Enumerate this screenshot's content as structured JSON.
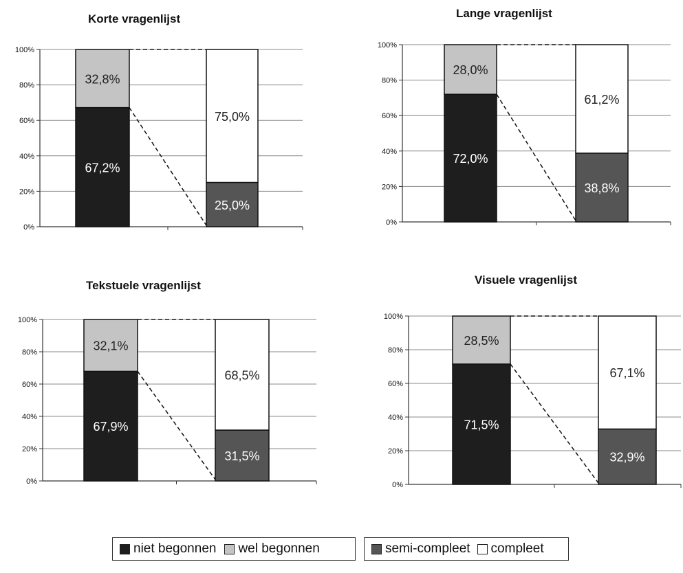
{
  "chart_data": [
    {
      "type": "bar",
      "stacked": true,
      "title": "Korte vragenlijst",
      "yticks": [
        "0%",
        "20%",
        "40%",
        "60%",
        "80%",
        "100%"
      ],
      "ylim": [
        0,
        100
      ],
      "grid": true,
      "bars": [
        {
          "segments": [
            {
              "series": "niet begonnen",
              "value": 67.2,
              "label": "67,2%"
            },
            {
              "series": "wel begonnen",
              "value": 32.8,
              "label": "32,8%"
            }
          ]
        },
        {
          "segments": [
            {
              "series": "semi-compleet",
              "value": 25.0,
              "label": "25,0%"
            },
            {
              "series": "compleet",
              "value": 75.0,
              "label": "75,0%"
            }
          ]
        }
      ]
    },
    {
      "type": "bar",
      "stacked": true,
      "title": "Lange vragenlijst",
      "yticks": [
        "0%",
        "20%",
        "40%",
        "60%",
        "80%",
        "100%"
      ],
      "ylim": [
        0,
        100
      ],
      "grid": true,
      "bars": [
        {
          "segments": [
            {
              "series": "niet begonnen",
              "value": 72.0,
              "label": "72,0%"
            },
            {
              "series": "wel begonnen",
              "value": 28.0,
              "label": "28,0%"
            }
          ]
        },
        {
          "segments": [
            {
              "series": "semi-compleet",
              "value": 38.8,
              "label": "38,8%"
            },
            {
              "series": "compleet",
              "value": 61.2,
              "label": "61,2%"
            }
          ]
        }
      ]
    },
    {
      "type": "bar",
      "stacked": true,
      "title": "Tekstuele vragenlijst",
      "yticks": [
        "0%",
        "20%",
        "40%",
        "60%",
        "80%",
        "100%"
      ],
      "ylim": [
        0,
        100
      ],
      "grid": true,
      "bars": [
        {
          "segments": [
            {
              "series": "niet begonnen",
              "value": 67.9,
              "label": "67,9%"
            },
            {
              "series": "wel begonnen",
              "value": 32.1,
              "label": "32,1%"
            }
          ]
        },
        {
          "segments": [
            {
              "series": "semi-compleet",
              "value": 31.5,
              "label": "31,5%"
            },
            {
              "series": "compleet",
              "value": 68.5,
              "label": "68,5%"
            }
          ]
        }
      ]
    },
    {
      "type": "bar",
      "stacked": true,
      "title": "Visuele vragenlijst",
      "yticks": [
        "0%",
        "20%",
        "40%",
        "60%",
        "80%",
        "100%"
      ],
      "ylim": [
        0,
        100
      ],
      "grid": true,
      "bars": [
        {
          "segments": [
            {
              "series": "niet begonnen",
              "value": 71.5,
              "label": "71,5%"
            },
            {
              "series": "wel begonnen",
              "value": 28.5,
              "label": "28,5%"
            }
          ]
        },
        {
          "segments": [
            {
              "series": "semi-compleet",
              "value": 32.9,
              "label": "32,9%"
            },
            {
              "series": "compleet",
              "value": 67.1,
              "label": "67,1%"
            }
          ]
        }
      ]
    }
  ],
  "colors": {
    "niet begonnen": "#1e1e1e",
    "wel begonnen": "#c4c4c4",
    "semi-compleet": "#555555",
    "compleet": "#ffffff"
  },
  "legend": {
    "groups": [
      [
        {
          "series": "niet begonnen",
          "label": "niet begonnen"
        },
        {
          "series": "wel begonnen",
          "label": "wel begonnen"
        }
      ],
      [
        {
          "series": "semi-compleet",
          "label": "semi-compleet"
        },
        {
          "series": "compleet",
          "label": "compleet"
        }
      ]
    ]
  }
}
